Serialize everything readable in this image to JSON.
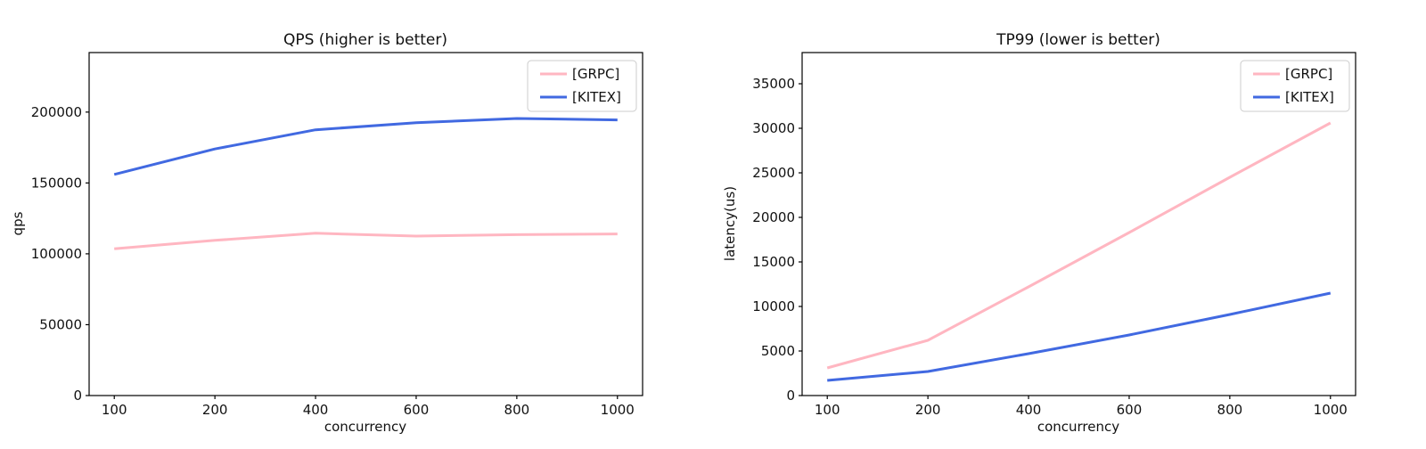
{
  "figure": {
    "background": "#ffffff",
    "text_color": "#111111",
    "spine_color": "#000000",
    "legend_border_color": "#cccccc",
    "legend_background": "#ffffff"
  },
  "chart_data": [
    {
      "type": "line",
      "title": "QPS (higher is better)",
      "xlabel": "concurrency",
      "ylabel": "qps",
      "categories": [
        "100",
        "200",
        "400",
        "600",
        "800",
        "1000"
      ],
      "y_ticks": [
        0,
        50000,
        100000,
        150000,
        200000
      ],
      "ylim": [
        0,
        242000
      ],
      "grid": false,
      "legend_position": "upper right",
      "series": [
        {
          "name": "[GRPC]",
          "color": "#ffb6c1",
          "values": [
            103500,
            109500,
            114500,
            112500,
            113500,
            114000
          ]
        },
        {
          "name": "[KITEX]",
          "color": "#4169e1",
          "values": [
            156000,
            174000,
            187500,
            192500,
            195500,
            194500
          ]
        }
      ]
    },
    {
      "type": "line",
      "title": "TP99 (lower is better)",
      "xlabel": "concurrency",
      "ylabel": "latency(us)",
      "categories": [
        "100",
        "200",
        "400",
        "600",
        "800",
        "1000"
      ],
      "y_ticks": [
        0,
        5000,
        10000,
        15000,
        20000,
        25000,
        30000,
        35000
      ],
      "ylim": [
        0,
        38500
      ],
      "grid": false,
      "legend_position": "upper right",
      "series": [
        {
          "name": "[GRPC]",
          "color": "#ffb6c1",
          "values": [
            3100,
            6200,
            12200,
            18300,
            24500,
            30600
          ]
        },
        {
          "name": "[KITEX]",
          "color": "#4169e1",
          "values": [
            1700,
            2700,
            4700,
            6800,
            9100,
            11500
          ]
        }
      ]
    }
  ]
}
